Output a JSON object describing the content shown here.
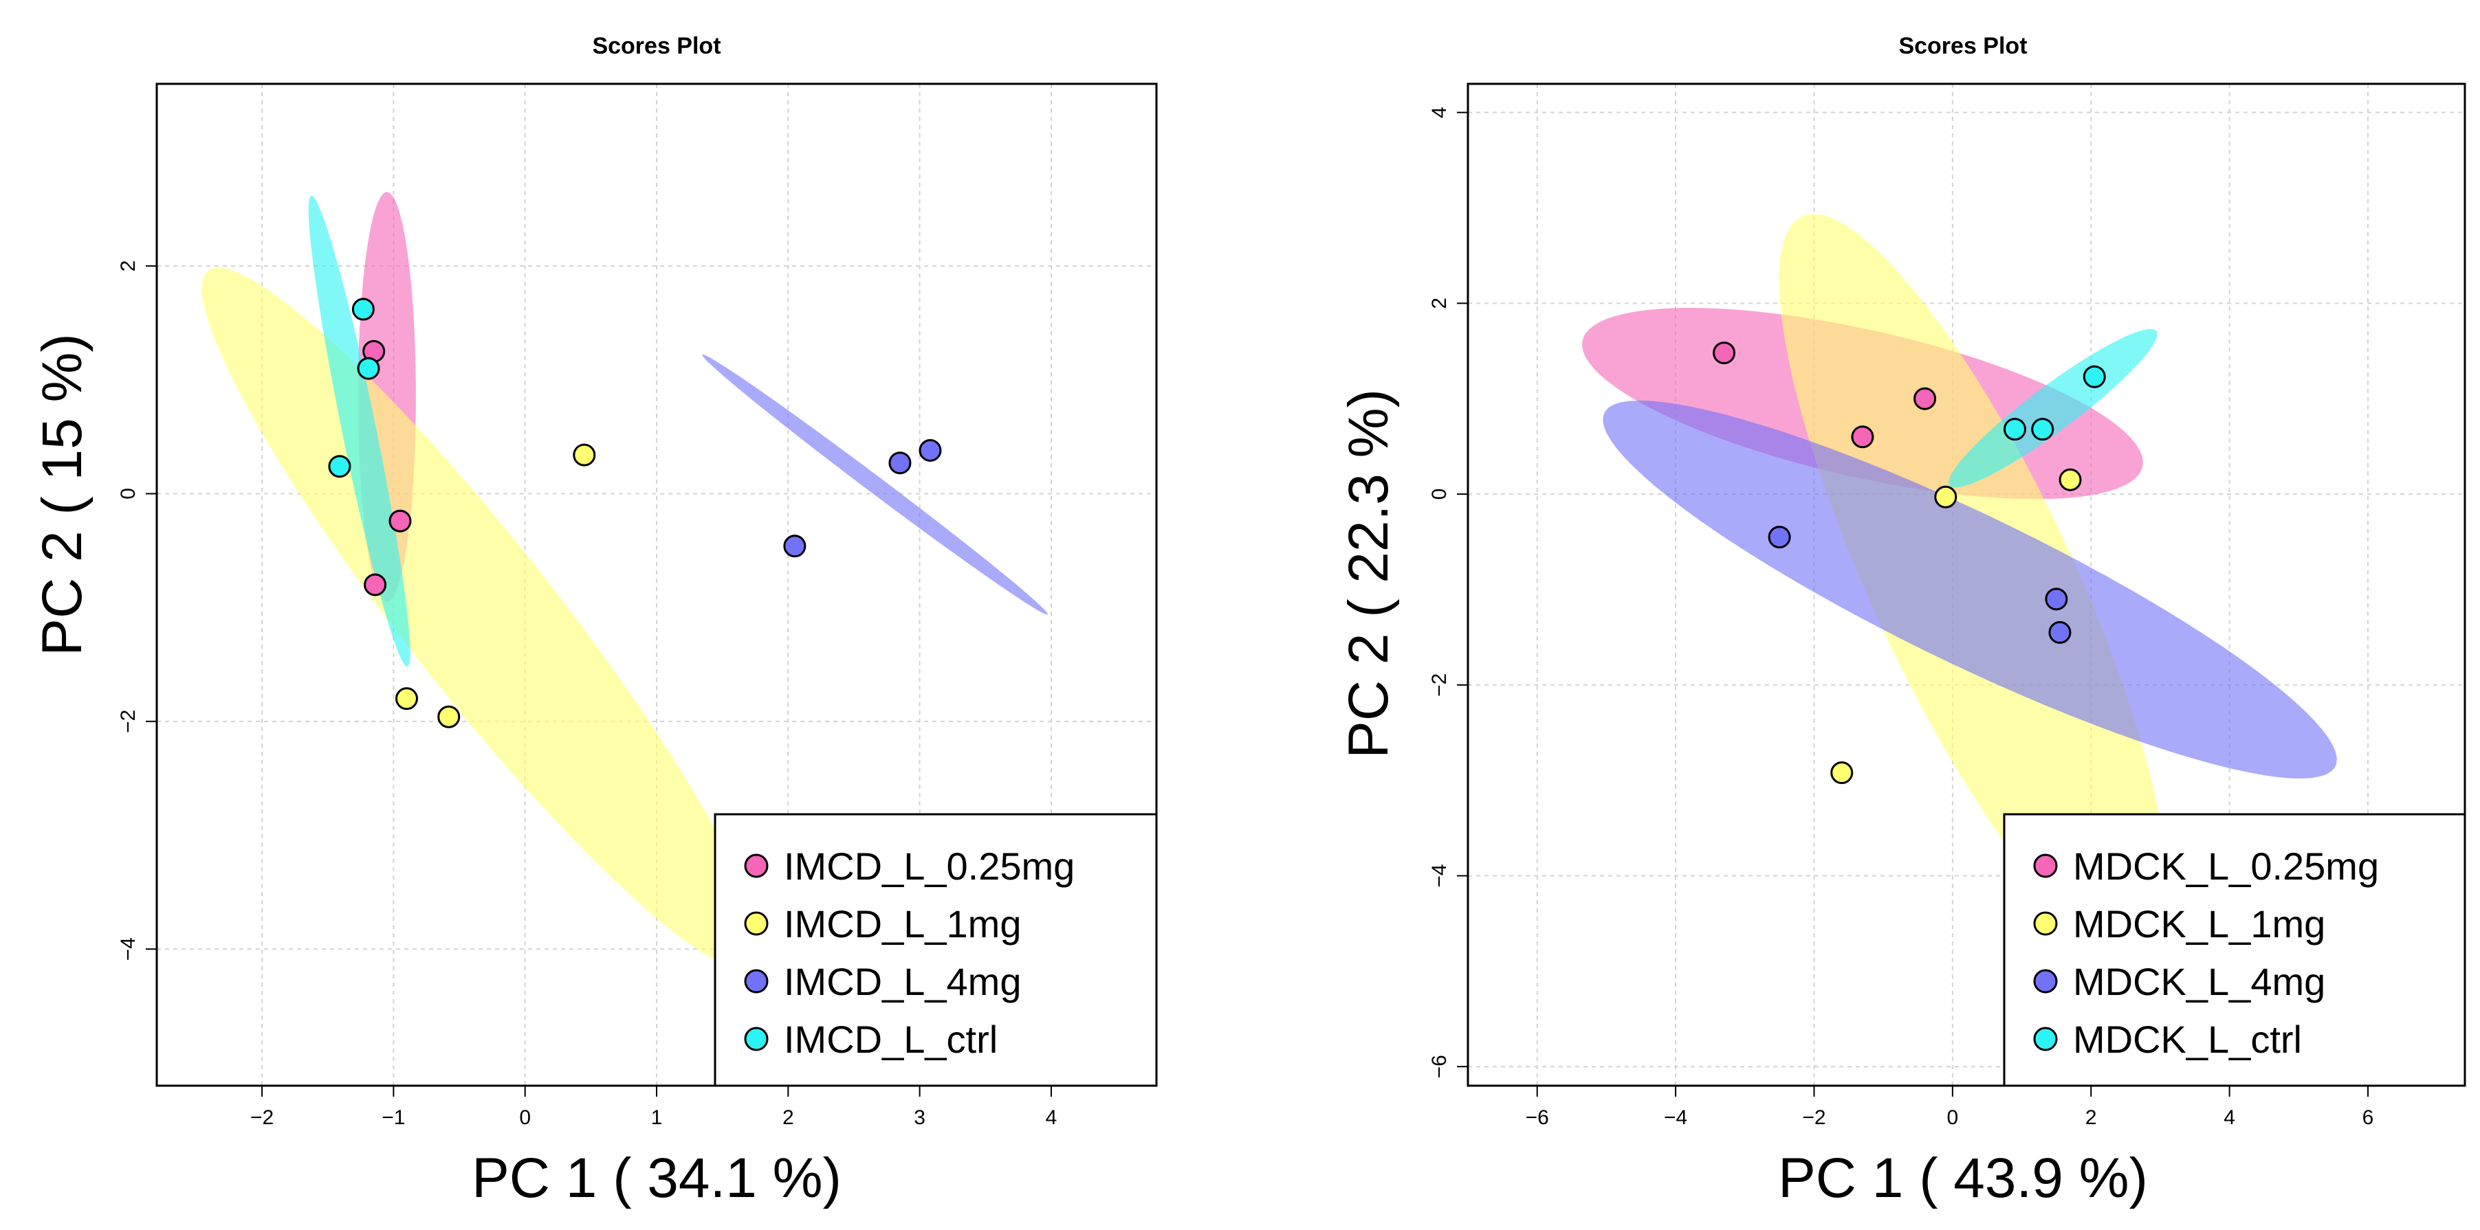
{
  "chart_data": [
    {
      "type": "scatter",
      "title": "Scores Plot",
      "xlabel": "PC 1 ( 34.1 %)",
      "ylabel": "PC 2 ( 15 %)",
      "xlim": [
        -2.8,
        4.8
      ],
      "ylim": [
        -5.2,
        3.6
      ],
      "xticks": [
        -2,
        -1,
        0,
        1,
        2,
        3,
        4
      ],
      "yticks": [
        -4,
        -2,
        0,
        2
      ],
      "xtick_labels": [
        "−2",
        "−1",
        "0",
        "1",
        "2",
        "3",
        "4"
      ],
      "ytick_labels": [
        "−4",
        "−2",
        "0",
        "2"
      ],
      "grid": true,
      "legend_position": "bottom-right",
      "series": [
        {
          "name": "IMCD_L_0.25mg",
          "color": "#F565B8",
          "points": [
            [
              -1.15,
              1.25
            ],
            [
              -0.95,
              -0.24
            ],
            [
              -1.14,
              -0.8
            ]
          ],
          "ellipse": {
            "cx": -1.05,
            "cy": 0.85,
            "rx": 0.22,
            "ry": 1.8,
            "angle_deg": 0
          }
        },
        {
          "name": "IMCD_L_1mg",
          "color": "#FFFF70",
          "points": [
            [
              0.45,
              0.34
            ],
            [
              -0.9,
              -1.8
            ],
            [
              -0.58,
              -1.96
            ]
          ],
          "ellipse": {
            "cx": -0.33,
            "cy": -1.1,
            "rx": 0.6,
            "ry": 3.7,
            "angle_deg": 34
          }
        },
        {
          "name": "IMCD_L_4mg",
          "color": "#7272F7",
          "points": [
            [
              2.05,
              -0.46
            ],
            [
              2.85,
              0.27
            ],
            [
              3.08,
              0.38
            ]
          ],
          "ellipse": {
            "cx": 2.66,
            "cy": 0.08,
            "rx": 0.07,
            "ry": 1.74,
            "angle_deg": 49
          }
        },
        {
          "name": "IMCD_L_ctrl",
          "color": "#2CF4F4",
          "points": [
            [
              -1.23,
              1.62
            ],
            [
              -1.19,
              1.1
            ],
            [
              -1.41,
              0.24
            ]
          ],
          "ellipse": {
            "cx": -1.26,
            "cy": 0.55,
            "rx": 0.13,
            "ry": 2.1,
            "angle_deg": 10
          }
        }
      ]
    },
    {
      "type": "scatter",
      "title": "Scores Plot",
      "xlabel": "PC 1 ( 43.9 %)",
      "ylabel": "PC 2 ( 22.3 %)",
      "xlim": [
        -7.0,
        7.4
      ],
      "ylim": [
        -6.2,
        4.3
      ],
      "xticks": [
        -6,
        -4,
        -2,
        0,
        2,
        4,
        6
      ],
      "yticks": [
        -6,
        -4,
        -2,
        0,
        2,
        4
      ],
      "xtick_labels": [
        "−6",
        "−4",
        "−2",
        "0",
        "2",
        "4",
        "6"
      ],
      "ytick_labels": [
        "−6",
        "−4",
        "−2",
        "0",
        "2",
        "4"
      ],
      "grid": true,
      "legend_position": "bottom-right",
      "series": [
        {
          "name": "MDCK_L_0.25mg",
          "color": "#F565B8",
          "points": [
            [
              -3.3,
              1.48
            ],
            [
              -1.3,
              0.6
            ],
            [
              -0.4,
              1.0
            ]
          ],
          "ellipse": {
            "cx": -1.3,
            "cy": 0.95,
            "rx": 4.1,
            "ry": 0.78,
            "angle_deg": -9
          }
        },
        {
          "name": "MDCK_L_1mg",
          "color": "#FFFF70",
          "points": [
            [
              -0.1,
              -0.03
            ],
            [
              1.7,
              0.15
            ],
            [
              -1.6,
              -2.92
            ]
          ],
          "ellipse": {
            "cx": 0.3,
            "cy": -0.95,
            "rx": 1.35,
            "ry": 4.6,
            "angle_deg": 34
          }
        },
        {
          "name": "MDCK_L_4mg",
          "color": "#7272F7",
          "points": [
            [
              -2.5,
              -0.45
            ],
            [
              1.5,
              -1.1
            ],
            [
              1.55,
              -1.45
            ]
          ],
          "ellipse": {
            "cx": 0.25,
            "cy": -1.0,
            "rx": 5.6,
            "ry": 0.82,
            "angle_deg": -19
          }
        },
        {
          "name": "MDCK_L_ctrl",
          "color": "#2CF4F4",
          "points": [
            [
              0.9,
              0.68
            ],
            [
              1.3,
              0.68
            ],
            [
              2.05,
              1.23
            ]
          ],
          "ellipse": {
            "cx": 1.45,
            "cy": 0.9,
            "rx": 1.7,
            "ry": 0.26,
            "angle_deg": 28
          }
        }
      ]
    }
  ]
}
